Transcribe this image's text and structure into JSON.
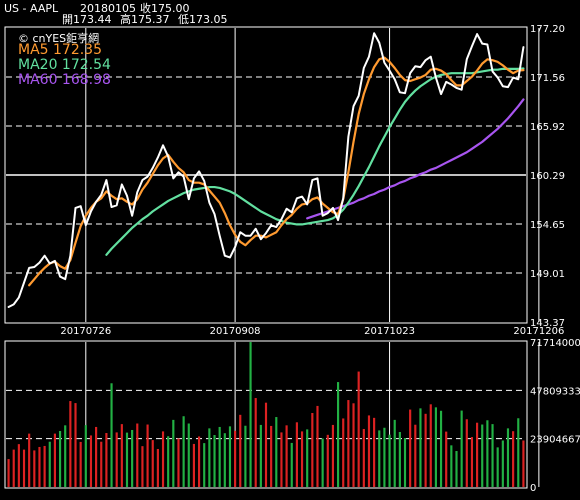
{
  "header": {
    "symbol": "US - AAPL",
    "date": "20180105",
    "close_label": "收175.00",
    "open_label": "開173.44",
    "high_label": "高175.37",
    "low_label": "低173.05"
  },
  "legend": {
    "brand": "© cnYES鉅亨網",
    "ma5": "MA5 172.35",
    "ma20": "MA20 172.54",
    "ma60": "MA60 168.98"
  },
  "colors": {
    "price": "#ffffff",
    "ma5": "#ff9a30",
    "ma20": "#62e0a0",
    "ma60": "#a855f0",
    "vol_up": "#dd2222",
    "vol_down": "#22b144",
    "grid": "#ffffff",
    "background": "#000000"
  },
  "chart_data": [
    {
      "type": "line",
      "panel": "price",
      "x_tick_labels": [
        "20170726",
        "20170908",
        "20171023",
        "20171206"
      ],
      "y_tick_labels": [
        "177.20",
        "171.56",
        "165.92",
        "160.29",
        "154.65",
        "149.01",
        "143.37"
      ],
      "y_ticks": [
        177.2,
        171.56,
        165.92,
        160.29,
        154.65,
        149.01,
        143.37
      ],
      "ylim": [
        143.37,
        177.2
      ],
      "highlight_line": 160.29,
      "series": [
        {
          "name": "MA5",
          "color_key": "ma5",
          "values": [
            null,
            null,
            null,
            null,
            147.6,
            148.3,
            149.0,
            149.6,
            150.1,
            150.3,
            149.8,
            149.5,
            150.5,
            152.5,
            154.4,
            155.6,
            156.5,
            157.2,
            157.6,
            158.4,
            157.9,
            157.5,
            157.6,
            157.2,
            156.9,
            157.5,
            158.6,
            159.4,
            160.4,
            161.4,
            162.2,
            162.6,
            161.8,
            161.1,
            160.6,
            159.7,
            159.4,
            159.4,
            159.2,
            158.5,
            157.8,
            157.1,
            155.9,
            154.5,
            153.4,
            152.6,
            152.2,
            152.8,
            153.3,
            153.3,
            153.1,
            153.4,
            153.7,
            154.5,
            155.2,
            155.7,
            156.4,
            156.9,
            157.0,
            157.5,
            157.7,
            157.0,
            156.5,
            156.0,
            155.8,
            157.5,
            160.6,
            164.1,
            167.3,
            169.6,
            171.3,
            172.7,
            173.6,
            173.8,
            173.3,
            172.6,
            171.8,
            171.2,
            171.1,
            171.3,
            171.5,
            171.8,
            172.4,
            172.5,
            172.3,
            171.9,
            171.2,
            170.6,
            170.6,
            171.1,
            171.6,
            172.3,
            173.1,
            173.6,
            173.5,
            173.3,
            172.9,
            172.4,
            172.0,
            172.3,
            172.35
          ]
        },
        {
          "name": "MA20",
          "color_key": "ma20",
          "values": [
            null,
            null,
            null,
            null,
            null,
            null,
            null,
            null,
            null,
            null,
            null,
            null,
            null,
            null,
            null,
            null,
            null,
            null,
            null,
            151.1,
            151.8,
            152.4,
            153.0,
            153.6,
            154.2,
            154.7,
            155.2,
            155.6,
            156.1,
            156.5,
            156.9,
            157.3,
            157.6,
            157.9,
            158.2,
            158.4,
            158.6,
            158.7,
            158.8,
            158.9,
            158.9,
            158.8,
            158.6,
            158.4,
            158.1,
            157.7,
            157.3,
            156.9,
            156.5,
            156.1,
            155.8,
            155.5,
            155.2,
            155.0,
            154.8,
            154.7,
            154.6,
            154.6,
            154.7,
            154.8,
            154.9,
            155.0,
            155.1,
            155.3,
            155.7,
            156.3,
            157.1,
            158.0,
            159.0,
            160.1,
            161.2,
            162.4,
            163.6,
            164.7,
            165.8,
            166.8,
            167.8,
            168.7,
            169.4,
            170.0,
            170.5,
            170.9,
            171.3,
            171.6,
            171.8,
            171.9,
            172.0,
            172.0,
            172.0,
            172.0,
            172.0,
            172.1,
            172.2,
            172.3,
            172.4,
            172.4,
            172.5,
            172.5,
            172.5,
            172.5,
            172.54
          ]
        },
        {
          "name": "MA60",
          "color_key": "ma60",
          "values": [
            null,
            null,
            null,
            null,
            null,
            null,
            null,
            null,
            null,
            null,
            null,
            null,
            null,
            null,
            null,
            null,
            null,
            null,
            null,
            null,
            null,
            null,
            null,
            null,
            null,
            null,
            null,
            null,
            null,
            null,
            null,
            null,
            null,
            null,
            null,
            null,
            null,
            null,
            null,
            null,
            null,
            null,
            null,
            null,
            null,
            null,
            null,
            null,
            null,
            null,
            null,
            null,
            null,
            null,
            null,
            null,
            null,
            null,
            155.3,
            155.5,
            155.7,
            155.9,
            156.1,
            156.3,
            156.5,
            156.7,
            156.9,
            157.1,
            157.4,
            157.6,
            157.9,
            158.1,
            158.4,
            158.6,
            158.9,
            159.1,
            159.4,
            159.6,
            159.9,
            160.1,
            160.4,
            160.6,
            160.9,
            161.1,
            161.4,
            161.7,
            162.0,
            162.3,
            162.6,
            162.9,
            163.3,
            163.7,
            164.1,
            164.6,
            165.1,
            165.6,
            166.2,
            166.8,
            167.5,
            168.2,
            168.98
          ]
        },
        {
          "name": "Price",
          "color_key": "price",
          "values": [
            145.1,
            145.4,
            146.2,
            147.9,
            149.6,
            149.7,
            150.2,
            151.0,
            150.1,
            150.4,
            148.6,
            148.3,
            151.0,
            156.5,
            156.7,
            154.5,
            156.1,
            157.2,
            158.0,
            159.7,
            156.6,
            156.8,
            159.2,
            157.9,
            155.6,
            158.3,
            159.7,
            160.1,
            161.1,
            162.3,
            163.7,
            162.4,
            159.9,
            160.6,
            160.1,
            157.5,
            159.9,
            160.7,
            159.6,
            157.1,
            155.8,
            153.3,
            151.0,
            150.8,
            152.0,
            153.7,
            153.3,
            153.3,
            154.1,
            152.9,
            153.6,
            154.5,
            154.3,
            155.2,
            156.4,
            156.0,
            157.6,
            157.8,
            156.9,
            159.7,
            159.9,
            155.6,
            155.9,
            156.5,
            155.1,
            157.6,
            164.7,
            168.2,
            169.4,
            172.6,
            173.9,
            176.6,
            175.5,
            173.2,
            172.3,
            171.3,
            169.8,
            169.7,
            172.0,
            172.8,
            172.7,
            173.5,
            173.9,
            171.5,
            169.6,
            171.0,
            170.7,
            170.3,
            170.1,
            173.6,
            175.1,
            176.5,
            175.4,
            175.3,
            172.2,
            171.5,
            170.5,
            170.4,
            171.5,
            171.3,
            175.0
          ]
        }
      ]
    },
    {
      "type": "bar",
      "panel": "volume",
      "y_tick_labels": [
        "71714000",
        "47809333",
        "23904667",
        "0"
      ],
      "y_ticks": [
        71714000,
        47809333,
        23904667,
        0
      ],
      "ylim": [
        0,
        71714000
      ],
      "up_color_key": "vol_up",
      "down_color_key": "vol_down",
      "values": [
        13800000,
        18500000,
        21200000,
        18500000,
        26400000,
        18100000,
        19800000,
        20300000,
        22400000,
        26400000,
        27700000,
        30500000,
        42500000,
        41500000,
        22300000,
        30600000,
        25500000,
        29700000,
        22400000,
        26700000,
        51300000,
        27000000,
        31100000,
        26900000,
        28200000,
        31400000,
        20200000,
        30900000,
        23200000,
        18800000,
        27500000,
        25100000,
        33200000,
        24000000,
        35000000,
        31400000,
        21300000,
        25000000,
        21700000,
        29000000,
        25700000,
        29700000,
        26600000,
        30000000,
        27800000,
        35700000,
        30300000,
        71700000,
        44000000,
        30700000,
        41700000,
        30200000,
        34600000,
        27000000,
        30500000,
        21800000,
        32000000,
        27500000,
        28500000,
        36600000,
        40100000,
        24000000,
        25800000,
        30700000,
        51900000,
        33900000,
        43000000,
        41400000,
        57100000,
        28700000,
        35400000,
        34200000,
        28000000,
        29300000,
        25900000,
        33200000,
        27200000,
        24200000,
        38300000,
        30800000,
        38900000,
        36200000,
        40900000,
        39400000,
        37700000,
        27400000,
        20600000,
        17800000,
        37800000,
        33500000,
        24700000,
        31800000,
        30900000,
        33000000,
        31100000,
        19600000,
        23000000,
        29000000,
        27600000,
        34000000,
        23000000
      ],
      "up": [
        true,
        true,
        true,
        true,
        true,
        true,
        true,
        true,
        false,
        true,
        false,
        false,
        true,
        true,
        true,
        false,
        true,
        true,
        true,
        true,
        false,
        true,
        true,
        false,
        false,
        true,
        true,
        true,
        true,
        true,
        true,
        false,
        false,
        true,
        false,
        false,
        true,
        true,
        false,
        false,
        false,
        false,
        false,
        false,
        true,
        true,
        false,
        false,
        true,
        false,
        true,
        true,
        false,
        true,
        true,
        false,
        true,
        true,
        false,
        true,
        true,
        false,
        true,
        true,
        false,
        true,
        true,
        true,
        true,
        true,
        true,
        true,
        false,
        false,
        false,
        false,
        false,
        false,
        true,
        true,
        false,
        true,
        true,
        false,
        false,
        true,
        false,
        false,
        false,
        true,
        true,
        true,
        false,
        false,
        false,
        false,
        false,
        false,
        true,
        false,
        true
      ]
    }
  ]
}
